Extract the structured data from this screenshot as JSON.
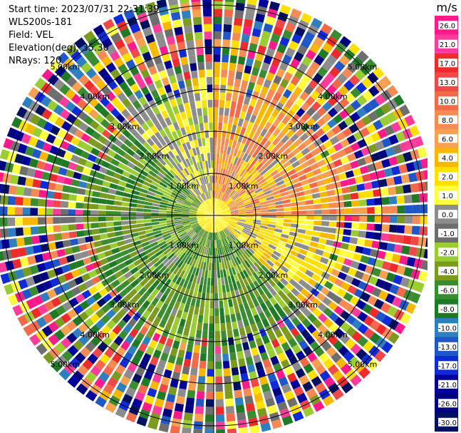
{
  "info": {
    "start_time": "Start time: 2023/07/31 22:31:39",
    "instrument": "WLS200s-181",
    "field": "Field: VEL",
    "elevation": "Elevation(deg): 35.30",
    "nrays": "NRays: 120"
  },
  "colorbar": {
    "unit": "m/s",
    "ticks": [
      "26.0",
      "21.0",
      "17.0",
      "13.0",
      "10.0",
      "8.0",
      "6.0",
      "4.0",
      "2.0",
      "1.0",
      "0.0",
      "-1.0",
      "-2.0",
      "-4.0",
      "-6.0",
      "-8.0",
      "-10.0",
      "-13.0",
      "-17.0",
      "-21.0",
      "-26.0",
      "-30.0"
    ],
    "colors": [
      "#ff1a8c",
      "#ff3c9c",
      "#ef2a2a",
      "#f04848",
      "#f26a4a",
      "#f58a55",
      "#f6a050",
      "#f8b800",
      "#ffe000",
      "#ffff40",
      "#8c8c8c",
      "#6e6e6e",
      "#9acd32",
      "#7a9a20",
      "#3a8c30",
      "#1f7a25",
      "#2e7fc0",
      "#1f56c8",
      "#0f2ad8",
      "#00009a",
      "#000080",
      "#001060"
    ]
  },
  "chart_data": {
    "type": "heatmap",
    "projection": "polar PPI",
    "field": "VEL",
    "units": "m/s",
    "range_rings_km": [
      "1.00km",
      "2.00km",
      "3.00km",
      "4.00km",
      "5.00km"
    ],
    "nrays": 120,
    "value_range": [
      -30,
      26
    ],
    "sectors": [
      {
        "azimuth_range_deg": [
          0,
          90
        ],
        "dominant_velocity_ms": [
          2.0,
          8.0
        ],
        "color_group": "yellow-orange"
      },
      {
        "azimuth_range_deg": [
          90,
          135
        ],
        "dominant_velocity_ms": [
          1.0,
          4.0
        ],
        "color_group": "yellow"
      },
      {
        "azimuth_range_deg": [
          135,
          315
        ],
        "dominant_velocity_ms": [
          -8.0,
          -1.0
        ],
        "color_group": "green"
      },
      {
        "azimuth_range_deg": [
          315,
          360
        ],
        "dominant_velocity_ms": [
          -1.0,
          2.0
        ],
        "color_group": "gray-yellow"
      }
    ],
    "far_range_noise": true
  }
}
